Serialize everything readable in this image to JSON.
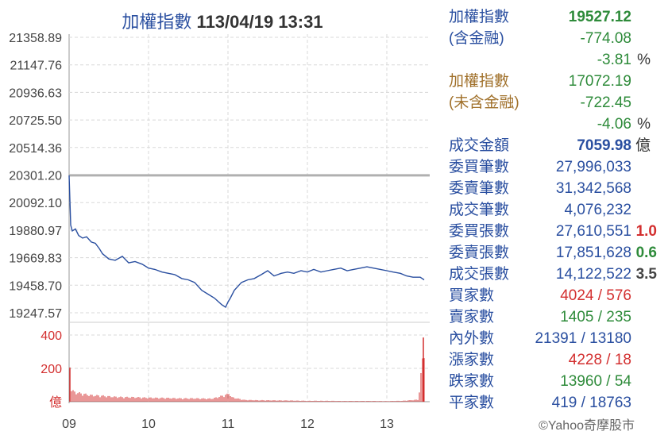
{
  "title": {
    "name": "加權指數",
    "datetime": "113/04/19 13:31"
  },
  "chart_data": {
    "type": "line",
    "price_axis": {
      "ylim": [
        19247.57,
        21358.89
      ],
      "ticks": [
        "21358.89",
        "21147.76",
        "20936.63",
        "20725.50",
        "20514.36",
        "20301.20",
        "20092.10",
        "19880.97",
        "19669.83",
        "19458.70",
        "19247.57"
      ]
    },
    "reference_value": 20301.2,
    "volume_axis": {
      "ylim": [
        0,
        400
      ],
      "ticks": [
        "400",
        "200"
      ],
      "unit": "億"
    },
    "x_ticks": [
      "09",
      "10",
      "11",
      "12",
      "13"
    ],
    "x_range": [
      9.0,
      13.5
    ],
    "series": [
      {
        "x": [
          9.0,
          9.02,
          9.04,
          9.08,
          9.12,
          9.17,
          9.22,
          9.28,
          9.33,
          9.38,
          9.42,
          9.5,
          9.58,
          9.67,
          9.75,
          9.83,
          9.92,
          10.0,
          10.08,
          10.17,
          10.25,
          10.33,
          10.42,
          10.5,
          10.58,
          10.67,
          10.75,
          10.83,
          10.92,
          10.97,
          11.0,
          11.03,
          11.08,
          11.17,
          11.25,
          11.33,
          11.42,
          11.5,
          11.58,
          11.67,
          11.75,
          11.83,
          11.92,
          12.0,
          12.08,
          12.17,
          12.25,
          12.33,
          12.42,
          12.5,
          12.58,
          12.67,
          12.75,
          12.83,
          12.92,
          13.0,
          13.08,
          13.17,
          13.25,
          13.33,
          13.42,
          13.47
        ],
        "y": [
          20301,
          19920,
          19875,
          19890,
          19840,
          19820,
          19830,
          19790,
          19780,
          19740,
          19700,
          19660,
          19650,
          19680,
          19630,
          19640,
          19620,
          19590,
          19580,
          19560,
          19550,
          19540,
          19510,
          19500,
          19480,
          19420,
          19390,
          19360,
          19310,
          19290,
          19330,
          19360,
          19420,
          19480,
          19500,
          19510,
          19540,
          19570,
          19530,
          19550,
          19560,
          19550,
          19570,
          19560,
          19580,
          19560,
          19570,
          19580,
          19590,
          19570,
          19580,
          19590,
          19600,
          19590,
          19580,
          19570,
          19560,
          19550,
          19530,
          19520,
          19520,
          19500
        ]
      }
    ],
    "volume": {
      "x": [
        9.0,
        9.03,
        9.06,
        9.1,
        9.15,
        9.2,
        9.25,
        9.3,
        9.4,
        9.5,
        9.6,
        9.7,
        9.8,
        9.9,
        10.0,
        10.2,
        10.4,
        10.6,
        10.8,
        11.0,
        11.02,
        11.04,
        11.2,
        11.4,
        11.6,
        11.8,
        12.0,
        12.2,
        12.4,
        12.6,
        12.8,
        13.0,
        13.2,
        13.4,
        13.47
      ],
      "values": [
        205,
        80,
        65,
        60,
        55,
        50,
        45,
        42,
        40,
        35,
        32,
        30,
        30,
        28,
        26,
        25,
        22,
        22,
        20,
        50,
        60,
        30,
        12,
        10,
        9,
        8,
        6,
        6,
        5,
        5,
        5,
        4,
        6,
        14,
        385
      ]
    }
  },
  "stats": [
    {
      "label": "加權指數",
      "value": "19527.12",
      "label_color": "#2a4fa0",
      "value_color": "#2e8b3a",
      "bold": true
    },
    {
      "label": "(含金融)",
      "value": "-774.08",
      "label_color": "#2a4fa0",
      "value_color": "#2e8b3a"
    },
    {
      "label": "",
      "value": "-3.81",
      "unit": "%",
      "value_color": "#2e8b3a"
    },
    {
      "label": "加權指數",
      "value": "17072.19",
      "label_color": "#a0702a",
      "value_color": "#2e8b3a"
    },
    {
      "label": "(未含金融)",
      "value": "-722.45",
      "label_color": "#a0702a",
      "value_color": "#2e8b3a"
    },
    {
      "label": "",
      "value": "-4.06",
      "unit": "%",
      "value_color": "#2e8b3a"
    },
    {
      "label": "成交金額",
      "value": "7059.98",
      "unit": "億",
      "label_color": "#2a4fa0",
      "value_color": "#2a4fa0",
      "bold": true
    },
    {
      "label": "委買筆數",
      "value": "27,996,033",
      "label_color": "#2a4fa0",
      "value_color": "#2a4fa0"
    },
    {
      "label": "委賣筆數",
      "value": "31,342,568",
      "label_color": "#2a4fa0",
      "value_color": "#2a4fa0"
    },
    {
      "label": "成交筆數",
      "value": "4,076,232",
      "label_color": "#2a4fa0",
      "value_color": "#2a4fa0"
    },
    {
      "label": "委買張數",
      "value": "27,610,551",
      "extra": "1.0",
      "extra_color": "#d32f2f",
      "label_color": "#2a4fa0",
      "value_color": "#2a4fa0"
    },
    {
      "label": "委賣張數",
      "value": "17,851,628",
      "extra": "0.6",
      "extra_color": "#2e8b3a",
      "label_color": "#2a4fa0",
      "value_color": "#2a4fa0"
    },
    {
      "label": "成交張數",
      "value": "14,122,522",
      "extra": "3.5",
      "extra_color": "#444444",
      "label_color": "#2a4fa0",
      "value_color": "#2a4fa0"
    },
    {
      "label": "買家數",
      "value": "4024 / 576",
      "label_color": "#2a4fa0",
      "value_color": "#d32f2f"
    },
    {
      "label": "賣家數",
      "value": "1405 / 235",
      "label_color": "#2a4fa0",
      "value_color": "#2e8b3a"
    },
    {
      "label": "內外數",
      "value": "21391 / 13180",
      "label_color": "#2a4fa0",
      "value_color": "#2a4fa0"
    },
    {
      "label": "漲家數",
      "value": "4228 / 18",
      "label_color": "#2a4fa0",
      "value_color": "#d32f2f"
    },
    {
      "label": "跌家數",
      "value": "13960 / 54",
      "label_color": "#2a4fa0",
      "value_color": "#2e8b3a"
    },
    {
      "label": "平家數",
      "value": "419 / 18763",
      "label_color": "#2a4fa0",
      "value_color": "#2a4fa0"
    }
  ],
  "copyright": "©Yahoo奇摩股市",
  "colors": {
    "line": "#2a4fa0",
    "reference": "#b0b0b0",
    "volume": "#d32f2f",
    "grid": "#d8d8d8"
  }
}
